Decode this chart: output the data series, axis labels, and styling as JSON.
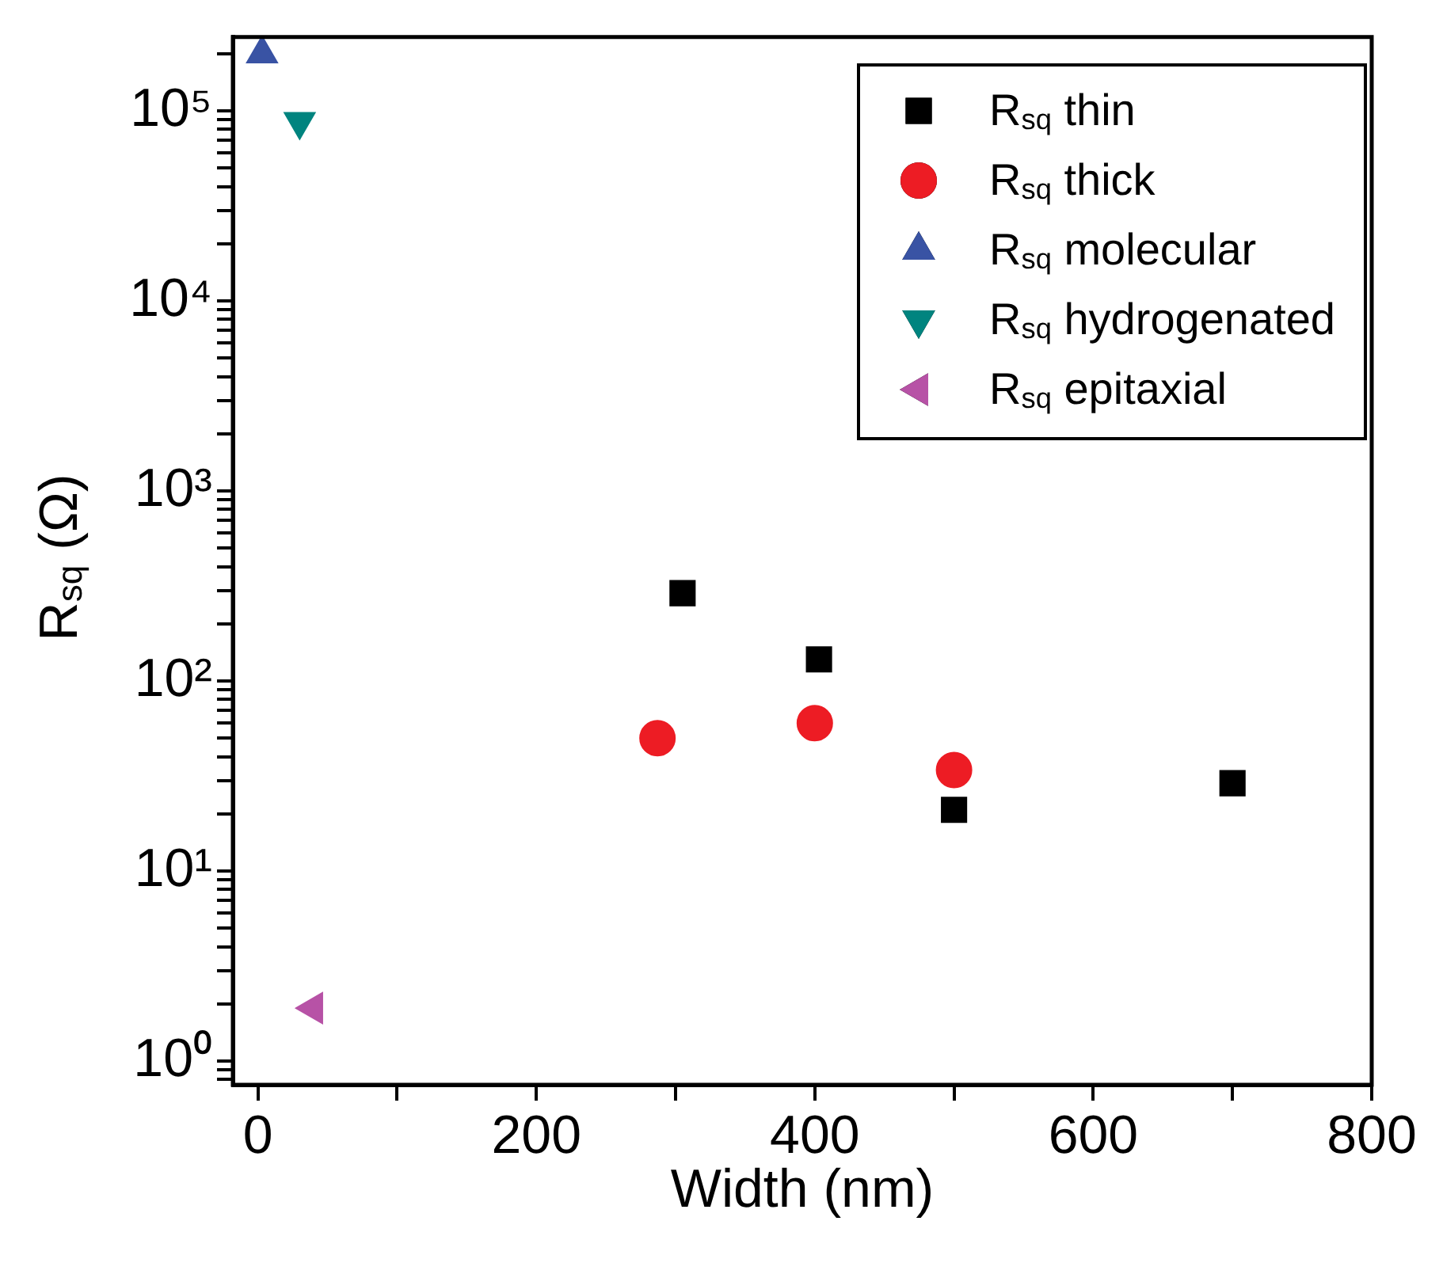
{
  "chart_data": {
    "type": "scatter",
    "xlabel": "Width (nm)",
    "ylabel": "R$_{sq}$ (Ω)",
    "xlim": [
      -18,
      800
    ],
    "xticks": [
      0,
      {
        "value": 100,
        "label": null
      },
      200,
      {
        "value": 300,
        "label": null
      },
      400,
      {
        "value": 500,
        "label": null
      },
      600,
      {
        "value": 700,
        "label": null
      },
      800
    ],
    "ylim": [
      0.75,
      245000
    ],
    "yticks": [
      {
        "value": 0.8,
        "label": null
      },
      {
        "value": 0.9,
        "label": null
      },
      {
        "value": 1,
        "label": "10⁰"
      },
      {
        "value": 2,
        "label": null
      },
      {
        "value": 3,
        "label": null
      },
      {
        "value": 4,
        "label": null
      },
      {
        "value": 5,
        "label": null
      },
      {
        "value": 6,
        "label": null
      },
      {
        "value": 7,
        "label": null
      },
      {
        "value": 8,
        "label": null
      },
      {
        "value": 9,
        "label": null
      },
      {
        "value": 10,
        "label": "10¹"
      },
      {
        "value": 20,
        "label": null
      },
      {
        "value": 30,
        "label": null
      },
      {
        "value": 40,
        "label": null
      },
      {
        "value": 50,
        "label": null
      },
      {
        "value": 60,
        "label": null
      },
      {
        "value": 70,
        "label": null
      },
      {
        "value": 80,
        "label": null
      },
      {
        "value": 90,
        "label": null
      },
      {
        "value": 100,
        "label": "10²"
      },
      {
        "value": 200,
        "label": null
      },
      {
        "value": 300,
        "label": null
      },
      {
        "value": 400,
        "label": null
      },
      {
        "value": 500,
        "label": null
      },
      {
        "value": 600,
        "label": null
      },
      {
        "value": 700,
        "label": null
      },
      {
        "value": 800,
        "label": null
      },
      {
        "value": 900,
        "label": null
      },
      {
        "value": 1000,
        "label": "10³"
      },
      {
        "value": 2000,
        "label": null
      },
      {
        "value": 3000,
        "label": null
      },
      {
        "value": 4000,
        "label": null
      },
      {
        "value": 5000,
        "label": null
      },
      {
        "value": 6000,
        "label": null
      },
      {
        "value": 7000,
        "label": null
      },
      {
        "value": 8000,
        "label": null
      },
      {
        "value": 9000,
        "label": null
      },
      {
        "value": 10000,
        "label": "10⁴"
      },
      {
        "value": 20000,
        "label": null
      },
      {
        "value": 30000,
        "label": null
      },
      {
        "value": 40000,
        "label": null
      },
      {
        "value": 50000,
        "label": null
      },
      {
        "value": 60000,
        "label": null
      },
      {
        "value": 70000,
        "label": null
      },
      {
        "value": 80000,
        "label": null
      },
      {
        "value": 90000,
        "label": null
      },
      {
        "value": 100000,
        "label": "10⁵"
      },
      {
        "value": 200000,
        "label": null
      }
    ],
    "log": "y",
    "grid": false,
    "legend": "top right",
    "series": [
      {
        "name": "R$_{sq}$ thin",
        "color": "#000000",
        "marker": "square",
        "x": [
          305,
          403,
          500,
          700
        ],
        "values": [
          290,
          130,
          21,
          29
        ]
      },
      {
        "name": "R$_{sq}$ thick",
        "color": "#ed1c24",
        "marker": "circle",
        "x": [
          287,
          400,
          500
        ],
        "values": [
          50,
          60,
          34
        ]
      },
      {
        "name": "R$_{sq}$ molecular",
        "color": "#3953a4",
        "marker": "triangle",
        "x": [
          3
        ],
        "values": [
          200000
        ]
      },
      {
        "name": "R$_{sq}$ hydrogenated",
        "color": "#00847f",
        "marker": "triangle-down",
        "x": [
          30
        ],
        "values": [
          88000
        ]
      },
      {
        "name": "R$_{sq}$ epitaxial",
        "color": "#b752a6",
        "marker": "triangle-left",
        "x": [
          40
        ],
        "values": [
          1.9
        ]
      }
    ]
  }
}
